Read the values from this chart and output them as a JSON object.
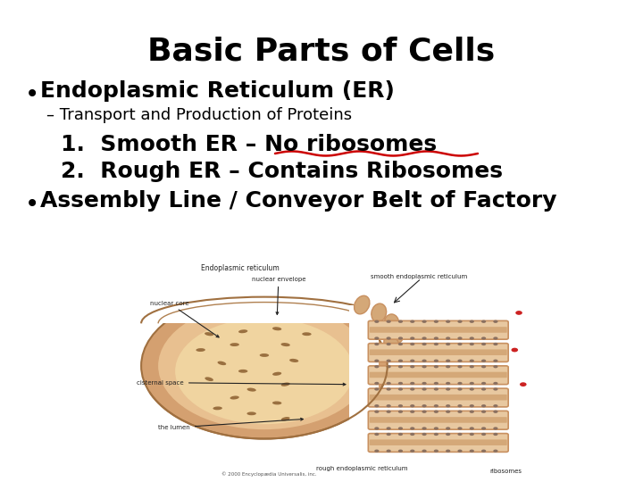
{
  "title": "Basic Parts of Cells",
  "title_fontsize": 26,
  "title_fontweight": "bold",
  "bg_color": "#ffffff",
  "text_color": "#000000",
  "bullet1": "Endoplasmic Reticulum (ER)",
  "bullet1_fontsize": 18,
  "sub1": "– Transport and Production of Proteins",
  "sub1_fontsize": 13,
  "item1": "1.  Smooth ER – No ribosomes",
  "item1_fontsize": 18,
  "item2": "2.  Rough ER – Contains Ribosomes",
  "item2_fontsize": 18,
  "bullet2": "Assembly Line / Conveyor Belt of Factory",
  "bullet2_fontsize": 18,
  "underline_color": "#cc0000",
  "nucleus_outer": "#d4a070",
  "nucleus_inner": "#e8c090",
  "nucleus_fill": "#f0d4a0",
  "er_color": "#c89060",
  "er_light": "#d4a878",
  "er_fill": "#e8c8a0",
  "ribosome_color": "#8a7060",
  "label_color": "#222222"
}
